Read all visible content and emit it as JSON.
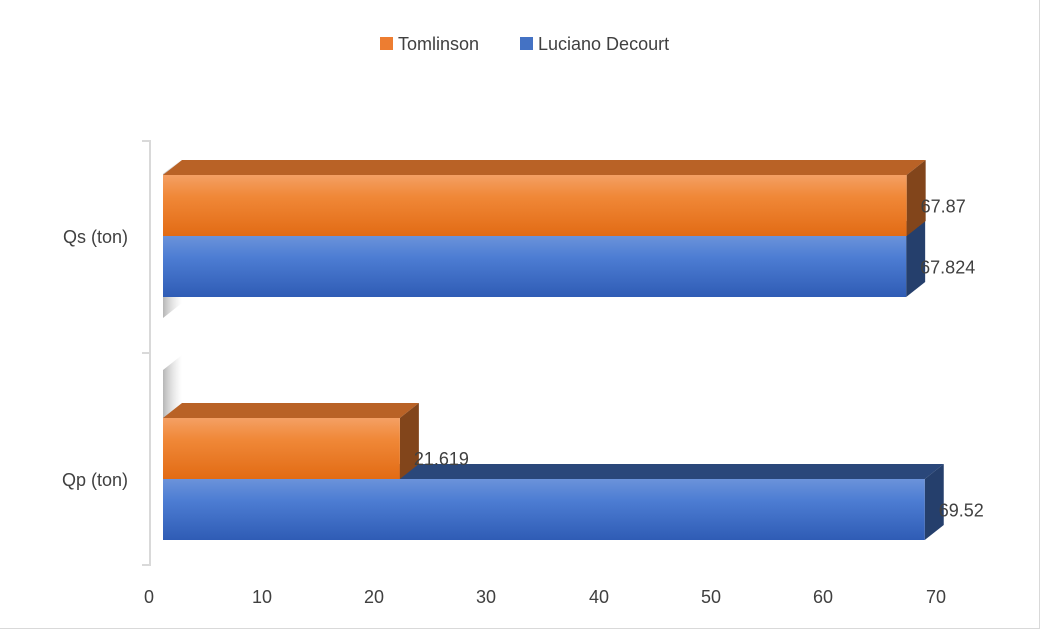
{
  "chart_data": {
    "type": "bar",
    "orientation": "horizontal",
    "style": "3d",
    "categories": [
      "Qp (ton)",
      "Qs (ton)"
    ],
    "series": [
      {
        "name": "Tomlinson",
        "color": "#ED7D31",
        "values": [
          21.619,
          67.87
        ],
        "labels": [
          "21.619",
          "67.87"
        ]
      },
      {
        "name": "Luciano Decourt",
        "color": "#4472C4",
        "values": [
          69.52,
          67.824
        ],
        "labels": [
          "69.52",
          "67.824"
        ]
      }
    ],
    "xlim": [
      0,
      70
    ],
    "xticks": [
      "0",
      "10",
      "20",
      "30",
      "40",
      "50",
      "60",
      "70"
    ],
    "legend_position": "top",
    "legend_order": [
      "Tomlinson",
      "Luciano Decourt"
    ],
    "grid": false,
    "title": "",
    "xlabel": "",
    "ylabel": ""
  }
}
